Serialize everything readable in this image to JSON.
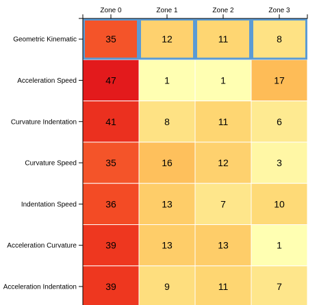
{
  "chart_data": {
    "type": "heatmap",
    "title": "",
    "xlabel": "",
    "ylabel": "",
    "columns": [
      "Zone 0",
      "Zone 1",
      "Zone 2",
      "Zone 3"
    ],
    "rows": [
      "Geometric Kinematic",
      "Acceleration Speed",
      "Curvature Indentation",
      "Curvature Speed",
      "Indentation Speed",
      "Acceleration Curvature",
      "Acceleration Indentation"
    ],
    "values": [
      [
        35,
        12,
        11,
        8
      ],
      [
        47,
        1,
        1,
        17
      ],
      [
        41,
        8,
        11,
        6
      ],
      [
        35,
        16,
        12,
        3
      ],
      [
        36,
        13,
        7,
        10
      ],
      [
        39,
        13,
        13,
        1
      ],
      [
        39,
        9,
        11,
        7
      ]
    ],
    "value_range": [
      1,
      47
    ],
    "highlighted_row": 0,
    "color_scale": [
      "#ffffb2",
      "#fed976",
      "#feb24c",
      "#fd8d3c",
      "#f03b20",
      "#e31a1c"
    ],
    "highlight_color": "#5b9bd5"
  }
}
